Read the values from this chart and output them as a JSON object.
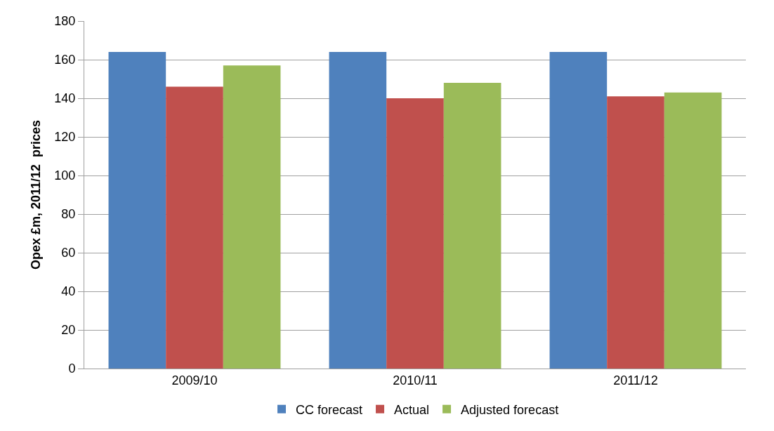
{
  "chart_data": {
    "type": "bar",
    "ylabel": "Opex £m, 2011/12  prices",
    "categories": [
      "2009/10",
      "2010/11",
      "2011/12"
    ],
    "series": [
      {
        "name": "CC forecast",
        "color": "#4f81bd",
        "values": [
          164,
          164,
          164
        ]
      },
      {
        "name": "Actual",
        "color": "#c0504d",
        "values": [
          146,
          140,
          141
        ]
      },
      {
        "name": "Adjusted forecast",
        "color": "#9bbb59",
        "values": [
          157,
          148,
          143
        ]
      }
    ],
    "ylim": [
      0,
      180
    ],
    "yticks": [
      0,
      20,
      40,
      60,
      80,
      100,
      120,
      140,
      160,
      180
    ],
    "grid": "y",
    "legend": "bottom"
  }
}
